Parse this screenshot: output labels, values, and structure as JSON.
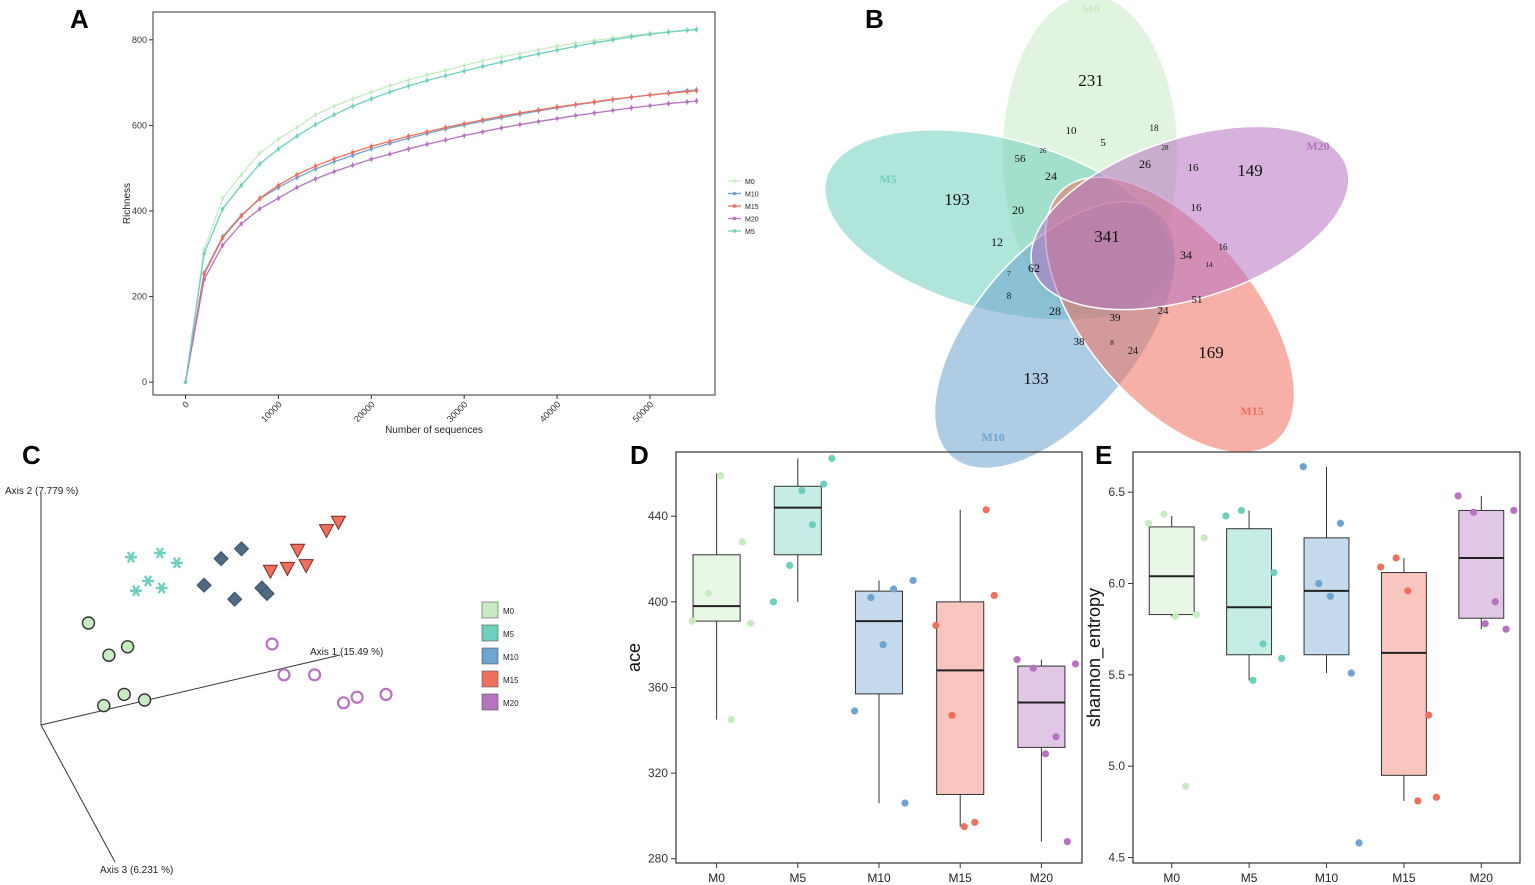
{
  "panel_labels": {
    "a": "A",
    "b": "B",
    "c": "C",
    "d": "D",
    "e": "E"
  },
  "colors": {
    "M0": "#c8ebc4",
    "M5": "#6fd0be",
    "M10": "#6ea3cf",
    "M15": "#f0705f",
    "M20": "#b573c0"
  },
  "chart_data": [
    {
      "id": "A",
      "type": "line",
      "title": "",
      "xlabel": "Number of sequences",
      "ylabel": "Richness",
      "xlim": [
        -3500,
        57000
      ],
      "ylim": [
        -30,
        865
      ],
      "xticks": [
        0,
        10000,
        20000,
        30000,
        40000,
        50000
      ],
      "yticks": [
        0,
        200,
        400,
        600,
        800
      ],
      "x": [
        0,
        2000,
        4000,
        6000,
        8000,
        10000,
        12000,
        14000,
        16000,
        18000,
        20000,
        22000,
        24000,
        26000,
        28000,
        30000,
        32000,
        34000,
        36000,
        38000,
        40000,
        42000,
        44000,
        46000,
        48000,
        50000,
        52000,
        54000,
        55000
      ],
      "legend": [
        "M0",
        "M10",
        "M15",
        "M20",
        "M5"
      ],
      "legend_position": "right",
      "series": [
        {
          "name": "M0",
          "values": [
            0,
            310,
            430,
            485,
            535,
            568,
            595,
            625,
            645,
            662,
            678,
            693,
            706,
            718,
            728,
            740,
            751,
            760,
            768,
            777,
            785,
            792,
            798,
            804,
            810,
            815,
            819,
            823,
            825
          ]
        },
        {
          "name": "M10",
          "values": [
            0,
            255,
            340,
            390,
            428,
            455,
            478,
            498,
            515,
            530,
            545,
            558,
            570,
            581,
            592,
            601,
            610,
            618,
            626,
            634,
            641,
            648,
            654,
            660,
            666,
            671,
            676,
            681,
            683
          ]
        },
        {
          "name": "M15",
          "values": [
            0,
            252,
            337,
            388,
            430,
            460,
            485,
            505,
            522,
            537,
            551,
            563,
            575,
            585,
            595,
            604,
            613,
            621,
            629,
            636,
            643,
            649,
            655,
            661,
            666,
            671,
            675,
            679,
            681
          ]
        },
        {
          "name": "M20",
          "values": [
            0,
            240,
            320,
            370,
            405,
            430,
            455,
            475,
            492,
            507,
            521,
            533,
            545,
            556,
            566,
            576,
            585,
            594,
            602,
            609,
            616,
            623,
            629,
            635,
            641,
            646,
            651,
            655,
            657
          ]
        },
        {
          "name": "M5",
          "values": [
            0,
            300,
            405,
            460,
            510,
            545,
            575,
            602,
            625,
            645,
            662,
            678,
            692,
            705,
            716,
            727,
            738,
            748,
            758,
            767,
            776,
            785,
            793,
            800,
            807,
            813,
            818,
            822,
            824
          ]
        }
      ]
    },
    {
      "id": "B",
      "type": "venn",
      "sets": [
        "M0",
        "M5",
        "M10",
        "M15",
        "M20"
      ],
      "unique": {
        "M0": 231,
        "M5": 193,
        "M10": 133,
        "M15": 169,
        "M20": 149
      },
      "core": 341,
      "intersections": [
        "10",
        "5",
        "18",
        "28",
        "26",
        "56",
        "26",
        "24",
        "16",
        "16",
        "20",
        "12",
        "7",
        "62",
        "34",
        "16",
        "14",
        "8",
        "28",
        "38",
        "39",
        "24",
        "51",
        "8",
        "24"
      ]
    },
    {
      "id": "C",
      "type": "scatter",
      "subtype": "PCoA-3D",
      "axis_labels": {
        "x": "Axis 1 (15.49 %)",
        "y": "Axis 2 (7.779 %)",
        "z": "Axis 3 (6.231 %)"
      },
      "legend": [
        "M0",
        "M5",
        "M10",
        "M15",
        "M20"
      ],
      "legend_position": "right",
      "groups": [
        {
          "name": "M0",
          "marker": "circle",
          "points": [
            [
              -0.95,
              0.05
            ],
            [
              -0.83,
              -0.18
            ],
            [
              -0.72,
              -0.12
            ],
            [
              -0.86,
              -0.54
            ],
            [
              -0.74,
              -0.46
            ],
            [
              -0.62,
              -0.5
            ]
          ]
        },
        {
          "name": "M5",
          "marker": "asterisk",
          "points": [
            [
              -0.7,
              0.52
            ],
            [
              -0.67,
              0.28
            ],
            [
              -0.6,
              0.35
            ],
            [
              -0.53,
              0.55
            ],
            [
              -0.52,
              0.3
            ],
            [
              -0.43,
              0.48
            ]
          ]
        },
        {
          "name": "M10",
          "marker": "diamond",
          "points": [
            [
              -0.27,
              0.32
            ],
            [
              -0.17,
              0.51
            ],
            [
              -0.09,
              0.22
            ],
            [
              -0.05,
              0.58
            ],
            [
              0.07,
              0.3
            ],
            [
              0.1,
              0.26
            ]
          ]
        },
        {
          "name": "M15",
          "marker": "triangle-down",
          "points": [
            [
              0.12,
              0.42
            ],
            [
              0.22,
              0.44
            ],
            [
              0.28,
              0.57
            ],
            [
              0.33,
              0.46
            ],
            [
              0.45,
              0.71
            ],
            [
              0.52,
              0.77
            ]
          ]
        },
        {
          "name": "M20",
          "marker": "open-circle",
          "points": [
            [
              0.13,
              -0.1
            ],
            [
              0.2,
              -0.32
            ],
            [
              0.38,
              -0.32
            ],
            [
              0.55,
              -0.52
            ],
            [
              0.63,
              -0.48
            ],
            [
              0.8,
              -0.46
            ]
          ]
        }
      ]
    },
    {
      "id": "D",
      "type": "box",
      "ylabel": "ace",
      "categories": [
        "M0",
        "M5",
        "M10",
        "M15",
        "M20"
      ],
      "ylim": [
        278,
        470
      ],
      "yticks": [
        280,
        320,
        360,
        400,
        440
      ],
      "boxes": [
        {
          "min": 345,
          "q1": 391,
          "median": 398,
          "q3": 422,
          "max": 460
        },
        {
          "min": 400,
          "q1": 422,
          "median": 444,
          "q3": 454,
          "max": 467
        },
        {
          "min": 306,
          "q1": 357,
          "median": 391,
          "q3": 405,
          "max": 410
        },
        {
          "min": 295,
          "q1": 310,
          "median": 368,
          "q3": 400,
          "max": 443
        },
        {
          "min": 288,
          "q1": 332,
          "median": 353,
          "q3": 370,
          "max": 373
        }
      ],
      "points": [
        [
          391,
          404,
          345,
          459,
          428,
          390
        ],
        [
          400,
          417,
          436,
          452,
          455,
          467
        ],
        [
          349,
          402,
          406,
          380,
          306,
          410
        ],
        [
          389,
          347,
          297,
          295,
          443,
          403
        ],
        [
          373,
          369,
          337,
          329,
          288,
          371
        ]
      ]
    },
    {
      "id": "E",
      "type": "box",
      "ylabel": "shannon_entropy",
      "categories": [
        "M0",
        "M5",
        "M10",
        "M15",
        "M20"
      ],
      "ylim": [
        4.47,
        6.72
      ],
      "yticks": [
        4.5,
        5.0,
        5.5,
        6.0,
        6.5
      ],
      "ytick_labels": [
        "4.5",
        "5.0",
        "5.5",
        "6.0",
        "6.5"
      ],
      "boxes": [
        {
          "min": 5.82,
          "q1": 5.83,
          "median": 6.04,
          "q3": 6.31,
          "max": 6.37
        },
        {
          "min": 5.47,
          "q1": 5.61,
          "median": 5.87,
          "q3": 6.3,
          "max": 6.4
        },
        {
          "min": 5.51,
          "q1": 5.61,
          "median": 5.96,
          "q3": 6.25,
          "max": 6.64
        },
        {
          "min": 4.81,
          "q1": 4.95,
          "median": 5.62,
          "q3": 6.06,
          "max": 6.14
        },
        {
          "min": 5.75,
          "q1": 5.81,
          "median": 6.14,
          "q3": 6.4,
          "max": 6.48
        }
      ],
      "points": [
        [
          6.33,
          6.38,
          4.89,
          5.82,
          5.83,
          6.25
        ],
        [
          6.37,
          6.4,
          5.67,
          5.47,
          6.06,
          5.59
        ],
        [
          6.64,
          6.0,
          6.33,
          5.93,
          5.51,
          4.58
        ],
        [
          6.09,
          6.14,
          4.81,
          5.96,
          5.28,
          4.83
        ],
        [
          6.48,
          6.39,
          5.9,
          5.78,
          5.75,
          6.4
        ]
      ]
    }
  ]
}
